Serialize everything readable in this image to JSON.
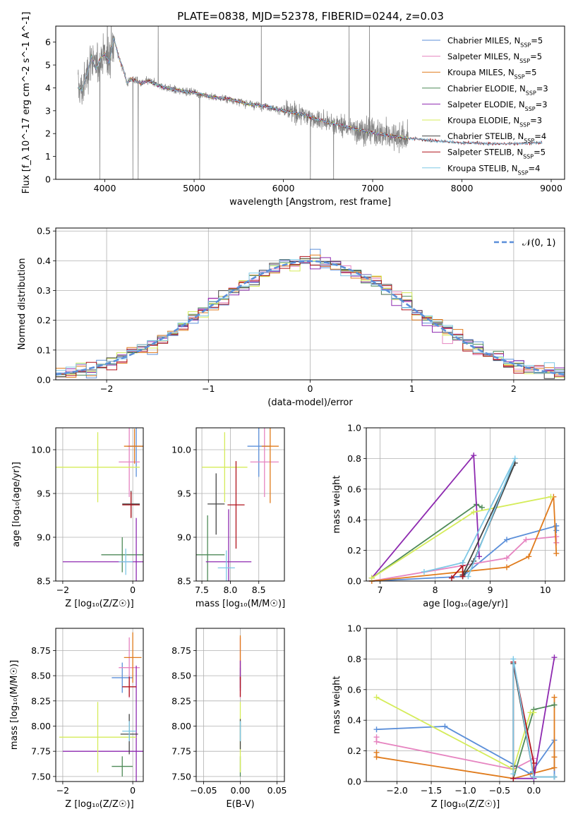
{
  "figure": {
    "title": "PLATE=0838, MJD=52378, FIBERID=0244, z=0.03"
  },
  "series_styles": [
    {
      "name": "Chabrier MILES",
      "legend": "Chabrier MILES, N",
      "n_ssp": 5,
      "color": "#5b8fd9"
    },
    {
      "name": "Salpeter MILES",
      "legend": "Salpeter MILES, N",
      "n_ssp": 5,
      "color": "#e684c0"
    },
    {
      "name": "Kroupa MILES",
      "legend": "Kroupa MILES, N",
      "n_ssp": 5,
      "color": "#e07b1c"
    },
    {
      "name": "Chabrier ELODIE",
      "legend": "Chabrier ELODIE, N",
      "n_ssp": 3,
      "color": "#4e8a58"
    },
    {
      "name": "Salpeter ELODIE",
      "legend": "Salpeter ELODIE, N",
      "n_ssp": 3,
      "color": "#8e2ab0"
    },
    {
      "name": "Kroupa ELODIE",
      "legend": "Kroupa ELODIE, N",
      "n_ssp": 3,
      "color": "#d5ec5a"
    },
    {
      "name": "Chabrier STELIB",
      "legend": "Chabrier STELIB, N",
      "n_ssp": 4,
      "color": "#444444"
    },
    {
      "name": "Salpeter STELIB",
      "legend": "Salpeter STELIB, N",
      "n_ssp": 5,
      "color": "#b0131c"
    },
    {
      "name": "Kroupa STELIB",
      "legend": "Kroupa STELIB, N",
      "n_ssp": 4,
      "color": "#7ec8e6"
    }
  ],
  "chart_data": [
    {
      "id": "spectrum",
      "type": "line",
      "xlabel": "wavelength [Angstrom, rest frame]",
      "ylabel": "Flux [f_λ 10^-17 erg cm^-2 s^-1 A^-1]",
      "xlim": [
        3450,
        9150
      ],
      "ylim": [
        0,
        6.7
      ],
      "xticks": [
        4000,
        5000,
        6000,
        7000,
        8000,
        9000
      ],
      "yticks": [
        0,
        1,
        2,
        3,
        4,
        5,
        6
      ],
      "data_range": [
        3700,
        7400
      ],
      "data_color": "#808080",
      "model_range": [
        3700,
        8900
      ],
      "model_shape": {
        "x": [
          3700,
          3750,
          3800,
          3850,
          3900,
          3950,
          4000,
          4050,
          4100,
          4150,
          4200,
          4250,
          4300,
          4400,
          4500,
          4600,
          4700,
          4800,
          4900,
          5000,
          5100,
          5200,
          5300,
          5400,
          5500,
          5600,
          5700,
          5800,
          5900,
          6000,
          6200,
          6400,
          6600,
          6800,
          7000,
          7200,
          7400,
          7600,
          7800,
          8000,
          8200,
          8400,
          8600,
          8900
        ],
        "y": [
          4.0,
          3.9,
          4.6,
          5.4,
          4.8,
          5.3,
          5.5,
          5.1,
          6.2,
          5.4,
          4.9,
          4.2,
          4.4,
          4.2,
          4.3,
          4.1,
          4.0,
          3.9,
          3.85,
          3.8,
          3.7,
          3.6,
          3.55,
          3.5,
          3.4,
          3.3,
          3.25,
          3.2,
          3.1,
          3.0,
          2.85,
          2.6,
          2.4,
          2.2,
          2.05,
          1.9,
          1.8,
          1.72,
          1.66,
          1.6,
          1.58,
          1.55,
          1.55,
          1.6
        ]
      }
    },
    {
      "id": "residuals",
      "type": "histogram",
      "xlabel": "(data-model)/error",
      "ylabel": "Normed distribution",
      "xlim": [
        -2.5,
        2.5
      ],
      "ylim": [
        0,
        0.51
      ],
      "xticks": [
        -2,
        -1,
        0,
        1,
        2
      ],
      "yticks": [
        0.0,
        0.1,
        0.2,
        0.3,
        0.4,
        0.5
      ],
      "legend": "𝒩(0, 1)",
      "reference_color": "#5b8fd9",
      "bin_width": 0.1
    },
    {
      "id": "age_vs_Z",
      "type": "errorbar",
      "xlabel": "Z [log₁₀(Z/Z☉)]",
      "ylabel": "age  [log₁₀(age/yr)]",
      "xlim": [
        -2.2,
        0.3
      ],
      "ylim": [
        8.5,
        10.25
      ],
      "xticks": [
        -2,
        0
      ],
      "yticks": [
        8.5,
        9.0,
        9.5,
        10.0
      ],
      "points": [
        {
          "series": 0,
          "x": 0.1,
          "y": 10.04,
          "xerr": 0.25,
          "yerr": 0.35
        },
        {
          "series": 1,
          "x": -0.1,
          "y": 9.86,
          "xerr": 0.3,
          "yerr": 0.4
        },
        {
          "series": 2,
          "x": 0.05,
          "y": 10.04,
          "xerr": 0.3,
          "yerr": 0.2
        },
        {
          "series": 3,
          "x": -0.3,
          "y": 8.8,
          "xerr": 0.6,
          "yerr": 0.2
        },
        {
          "series": 4,
          "x": 0.1,
          "y": 8.72,
          "xerr": 2.1,
          "yerr": 0.5
        },
        {
          "series": 5,
          "x": -1.0,
          "y": 9.8,
          "xerr": 1.2,
          "yerr": 0.4
        },
        {
          "series": 6,
          "x": -0.05,
          "y": 9.38,
          "xerr": 0.25,
          "yerr": 0.15
        },
        {
          "series": 7,
          "x": -0.05,
          "y": 9.37,
          "xerr": 0.25,
          "yerr": 0.15
        },
        {
          "series": 8,
          "x": -0.2,
          "y": 8.72,
          "xerr": 0.2,
          "yerr": 0.15
        }
      ]
    },
    {
      "id": "age_vs_mass",
      "type": "errorbar",
      "xlabel": "mass [log₁₀(M/M☉)]",
      "ylabel": "",
      "xlim": [
        7.4,
        8.95
      ],
      "ylim": [
        8.5,
        10.25
      ],
      "xticks": [
        7.5,
        8.0,
        8.5
      ],
      "yticks": [
        8.5,
        9.0,
        9.5,
        10.0
      ],
      "points": [
        {
          "series": 0,
          "x": 8.5,
          "y": 10.04,
          "xerr": 0.2,
          "yerr": 0.35
        },
        {
          "series": 1,
          "x": 8.6,
          "y": 9.86,
          "xerr": 0.25,
          "yerr": 0.4
        },
        {
          "series": 2,
          "x": 8.7,
          "y": 10.04,
          "xerr": 0.15,
          "yerr": 0.65
        },
        {
          "series": 3,
          "x": 7.6,
          "y": 8.8,
          "xerr": 0.3,
          "yerr": 0.45
        },
        {
          "series": 4,
          "x": 7.97,
          "y": 8.72,
          "xerr": 0.4,
          "yerr": 0.6
        },
        {
          "series": 5,
          "x": 7.9,
          "y": 9.8,
          "xerr": 0.4,
          "yerr": 0.4
        },
        {
          "series": 6,
          "x": 7.75,
          "y": 9.38,
          "xerr": 0.15,
          "yerr": 0.35
        },
        {
          "series": 7,
          "x": 8.1,
          "y": 9.37,
          "xerr": 0.15,
          "yerr": 0.5
        },
        {
          "series": 8,
          "x": 7.93,
          "y": 8.65,
          "xerr": 0.15,
          "yerr": 0.2
        }
      ]
    },
    {
      "id": "weight_vs_age",
      "type": "line",
      "xlabel": "age  [log₁₀(age/yr)]",
      "ylabel": "mass weight",
      "xlim": [
        6.75,
        10.35
      ],
      "ylim": [
        0,
        1.0
      ],
      "xticks": [
        7,
        8,
        9,
        10
      ],
      "yticks": [
        0.0,
        0.2,
        0.4,
        0.6,
        0.8,
        1.0
      ],
      "series": [
        {
          "series": 0,
          "x": [
            6.85,
            8.5,
            9.3,
            10.2,
            10.2
          ],
          "y": [
            0.0,
            0.03,
            0.27,
            0.36,
            0.33
          ]
        },
        {
          "series": 1,
          "x": [
            6.85,
            9.3,
            9.65,
            10.2,
            10.2
          ],
          "y": [
            0.0,
            0.15,
            0.27,
            0.29,
            0.25
          ]
        },
        {
          "series": 2,
          "x": [
            6.85,
            9.3,
            9.7,
            10.15,
            10.2
          ],
          "y": [
            0.0,
            0.09,
            0.16,
            0.55,
            0.18
          ]
        },
        {
          "series": 3,
          "x": [
            6.85,
            8.75,
            8.85
          ],
          "y": [
            0.02,
            0.5,
            0.48
          ]
        },
        {
          "series": 4,
          "x": [
            6.85,
            8.7,
            8.8
          ],
          "y": [
            0.02,
            0.82,
            0.16
          ]
        },
        {
          "series": 5,
          "x": [
            6.85,
            8.7,
            10.1
          ],
          "y": [
            0.02,
            0.45,
            0.55
          ]
        },
        {
          "series": 6,
          "x": [
            8.5,
            8.7,
            9.45,
            8.5
          ],
          "y": [
            0.03,
            0.13,
            0.77,
            0.04
          ]
        },
        {
          "series": 7,
          "x": [
            8.3,
            8.5,
            8.5
          ],
          "y": [
            0.02,
            0.1,
            0.03
          ]
        },
        {
          "series": 8,
          "x": [
            7.8,
            8.5,
            9.45,
            8.6
          ],
          "y": [
            0.06,
            0.12,
            0.8,
            0.03
          ]
        }
      ]
    },
    {
      "id": "mass_vs_Z",
      "type": "errorbar",
      "xlabel": "Z [log₁₀(Z/Z☉)]",
      "ylabel": "mass [log₁₀(M/M☉)]",
      "xlim": [
        -2.2,
        0.3
      ],
      "ylim": [
        7.45,
        8.97
      ],
      "xticks": [
        -2,
        0
      ],
      "yticks": [
        7.5,
        7.75,
        8.0,
        8.25,
        8.5,
        8.75
      ],
      "points": [
        {
          "series": 0,
          "x": -0.3,
          "y": 8.48,
          "xerr": 0.3,
          "yerr": 0.15
        },
        {
          "series": 1,
          "x": -0.1,
          "y": 8.58,
          "xerr": 0.3,
          "yerr": 0.3
        },
        {
          "series": 2,
          "x": 0.0,
          "y": 8.68,
          "xerr": 0.25,
          "yerr": 0.25
        },
        {
          "series": 3,
          "x": -0.3,
          "y": 7.6,
          "xerr": 0.3,
          "yerr": 0.1
        },
        {
          "series": 4,
          "x": 0.1,
          "y": 7.75,
          "xerr": 2.1,
          "yerr": 0.85
        },
        {
          "series": 5,
          "x": -1.0,
          "y": 7.89,
          "xerr": 1.1,
          "yerr": 0.35
        },
        {
          "series": 6,
          "x": -0.1,
          "y": 7.92,
          "xerr": 0.25,
          "yerr": 0.2
        },
        {
          "series": 7,
          "x": -0.1,
          "y": 8.39,
          "xerr": 0.2,
          "yerr": 0.1
        },
        {
          "series": 8,
          "x": -0.1,
          "y": 7.95,
          "xerr": 0.2,
          "yerr": 0.1
        }
      ]
    },
    {
      "id": "mass_vs_ebv",
      "type": "errorbar",
      "xlabel": "E(B-V)",
      "ylabel": "",
      "xlim": [
        -0.06,
        0.06
      ],
      "ylim": [
        7.45,
        8.97
      ],
      "xticks": [
        -0.05,
        0.0,
        0.05
      ],
      "yticks": [
        7.5,
        7.75,
        8.0,
        8.25,
        8.5,
        8.75
      ],
      "points": [
        {
          "series": 0,
          "x": 0.0,
          "y": 8.48,
          "xerr": 0,
          "yerr": 0.1
        },
        {
          "series": 1,
          "x": 0.0,
          "y": 8.58,
          "xerr": 0,
          "yerr": 0.3
        },
        {
          "series": 2,
          "x": 0.0,
          "y": 8.68,
          "xerr": 0,
          "yerr": 0.22
        },
        {
          "series": 3,
          "x": 0.0,
          "y": 7.6,
          "xerr": 0,
          "yerr": 0.1
        },
        {
          "series": 4,
          "x": 0.0,
          "y": 8.5,
          "xerr": 0,
          "yerr": 0.15
        },
        {
          "series": 5,
          "x": 0.0,
          "y": 7.89,
          "xerr": 0,
          "yerr": 0.35
        },
        {
          "series": 6,
          "x": 0.0,
          "y": 7.92,
          "xerr": 0,
          "yerr": 0.15
        },
        {
          "series": 7,
          "x": 0.0,
          "y": 8.39,
          "xerr": 0,
          "yerr": 0.1
        },
        {
          "series": 8,
          "x": 0.0,
          "y": 7.95,
          "xerr": 0,
          "yerr": 0.1
        }
      ]
    },
    {
      "id": "weight_vs_Z",
      "type": "line",
      "xlabel": "Z [log₁₀(Z/Z☉)]",
      "ylabel": "mass weight",
      "xlim": [
        -2.45,
        0.45
      ],
      "ylim": [
        0,
        1.0
      ],
      "xticks": [
        -2.0,
        -1.5,
        -1.0,
        -0.5,
        0.0
      ],
      "yticks": [
        0.0,
        0.2,
        0.4,
        0.6,
        0.8,
        1.0
      ],
      "series": [
        {
          "series": 0,
          "x": [
            -2.3,
            -1.3,
            -0.05,
            0.3,
            0.3
          ],
          "y": [
            0.34,
            0.36,
            0.05,
            0.27,
            0.03
          ]
        },
        {
          "series": 1,
          "x": [
            -2.3,
            -2.3,
            -0.3,
            0.0
          ],
          "y": [
            0.29,
            0.26,
            0.08,
            0.15
          ]
        },
        {
          "series": 2,
          "x": [
            -2.3,
            -2.3,
            -0.3,
            0.3,
            0.3,
            0.3
          ],
          "y": [
            0.19,
            0.16,
            0.02,
            0.09,
            0.55,
            0.16
          ]
        },
        {
          "series": 3,
          "x": [
            -0.3,
            0.0,
            0.3
          ],
          "y": [
            0.02,
            0.47,
            0.5
          ]
        },
        {
          "series": 4,
          "x": [
            -0.3,
            0.0,
            0.3
          ],
          "y": [
            0.02,
            0.02,
            0.81
          ]
        },
        {
          "series": 5,
          "x": [
            -2.3,
            -0.3,
            -0.05,
            0.0
          ],
          "y": [
            0.55,
            0.08,
            0.45,
            0.45
          ]
        },
        {
          "series": 6,
          "x": [
            -0.3,
            -0.3,
            0.0,
            0.3
          ],
          "y": [
            0.1,
            0.77,
            0.03,
            0.03
          ]
        },
        {
          "series": 7,
          "x": [
            -0.3,
            -0.3,
            0.0,
            0.0
          ],
          "y": [
            0.02,
            0.78,
            0.12,
            0.03
          ]
        },
        {
          "series": 8,
          "x": [
            -0.3,
            -0.3,
            0.0,
            0.3
          ],
          "y": [
            0.05,
            0.8,
            0.03,
            0.03
          ]
        }
      ]
    }
  ]
}
